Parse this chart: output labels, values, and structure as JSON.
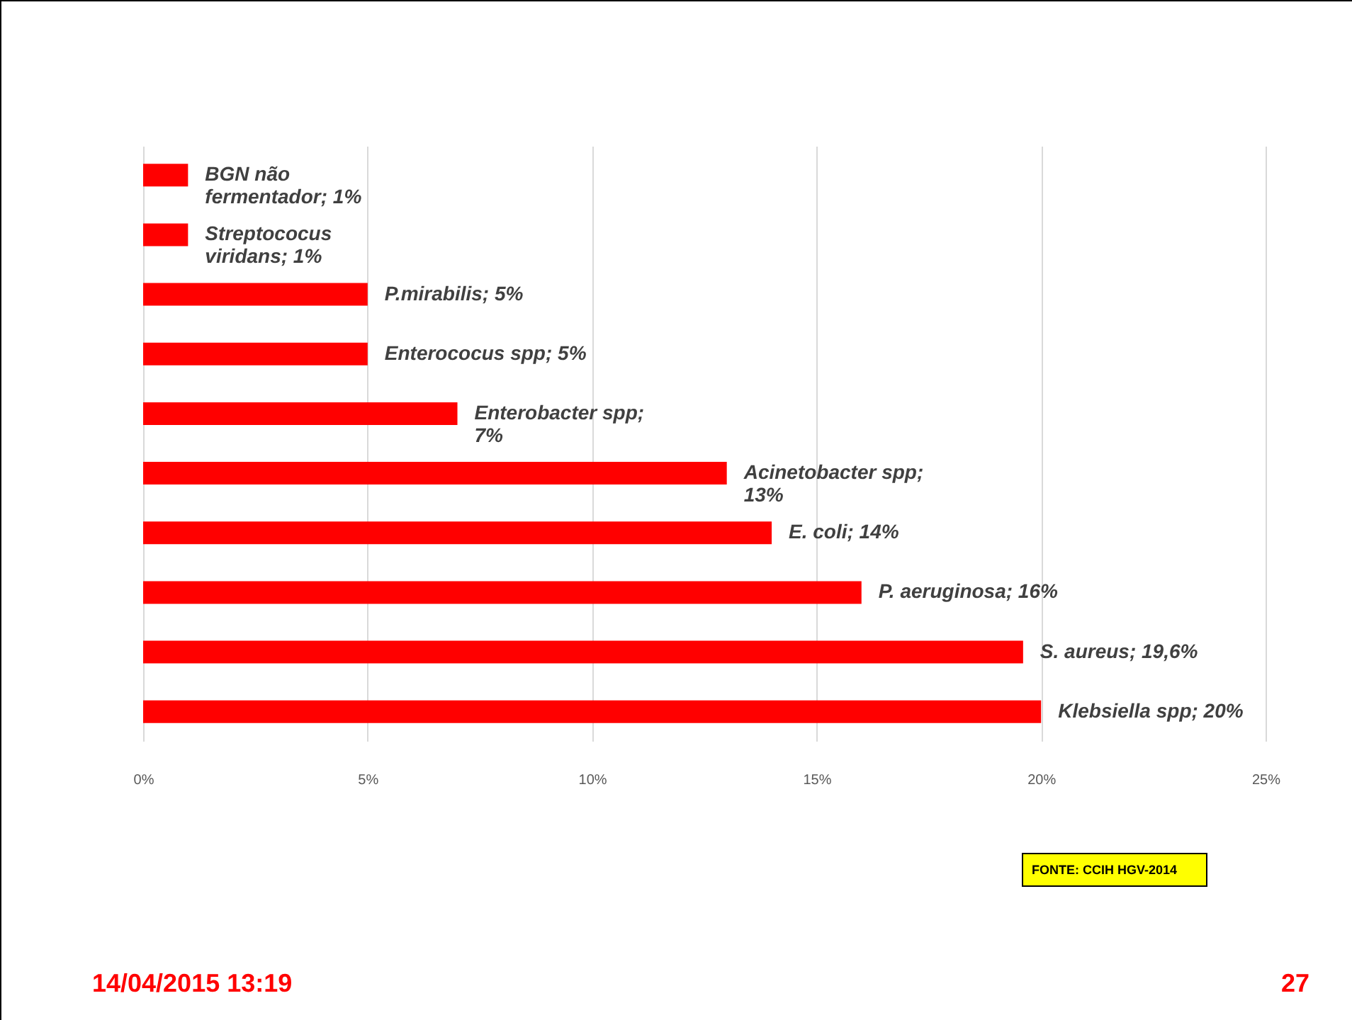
{
  "chart_data": {
    "type": "bar",
    "orientation": "horizontal",
    "categories": [
      null,
      null,
      null,
      null,
      null,
      null,
      null,
      null,
      null,
      null
    ],
    "values": [
      1,
      1,
      5,
      5,
      7,
      13,
      14,
      16,
      19.6,
      20
    ],
    "value_labels": [
      "BGN não\nfermentador; 1%",
      "Streptococus\nviridans; 1%",
      "P.mirabilis; 5%",
      "Enterococus spp; 5%",
      "Enterobacter spp;\n7%",
      "Acinetobacter spp;\n13%",
      "E. coli; 14%",
      "P. aeruginosa; 16%",
      "S. aureus; 19,6%",
      "Klebsiella spp; 20%"
    ],
    "color": "#ff0000",
    "xlim": [
      0,
      25
    ],
    "xticks": [
      {
        "value": 0,
        "label": "0%"
      },
      {
        "value": 5,
        "label": "5%"
      },
      {
        "value": 10,
        "label": "10%"
      },
      {
        "value": 15,
        "label": "15%"
      },
      {
        "value": 20,
        "label": "20%"
      },
      {
        "value": 25,
        "label": "25%"
      }
    ],
    "grid": "x",
    "tick_labels": "x",
    "annotations": [
      "FONTE: CCIH HGV-2014",
      "14/04/2015 13:19",
      "27"
    ]
  }
}
